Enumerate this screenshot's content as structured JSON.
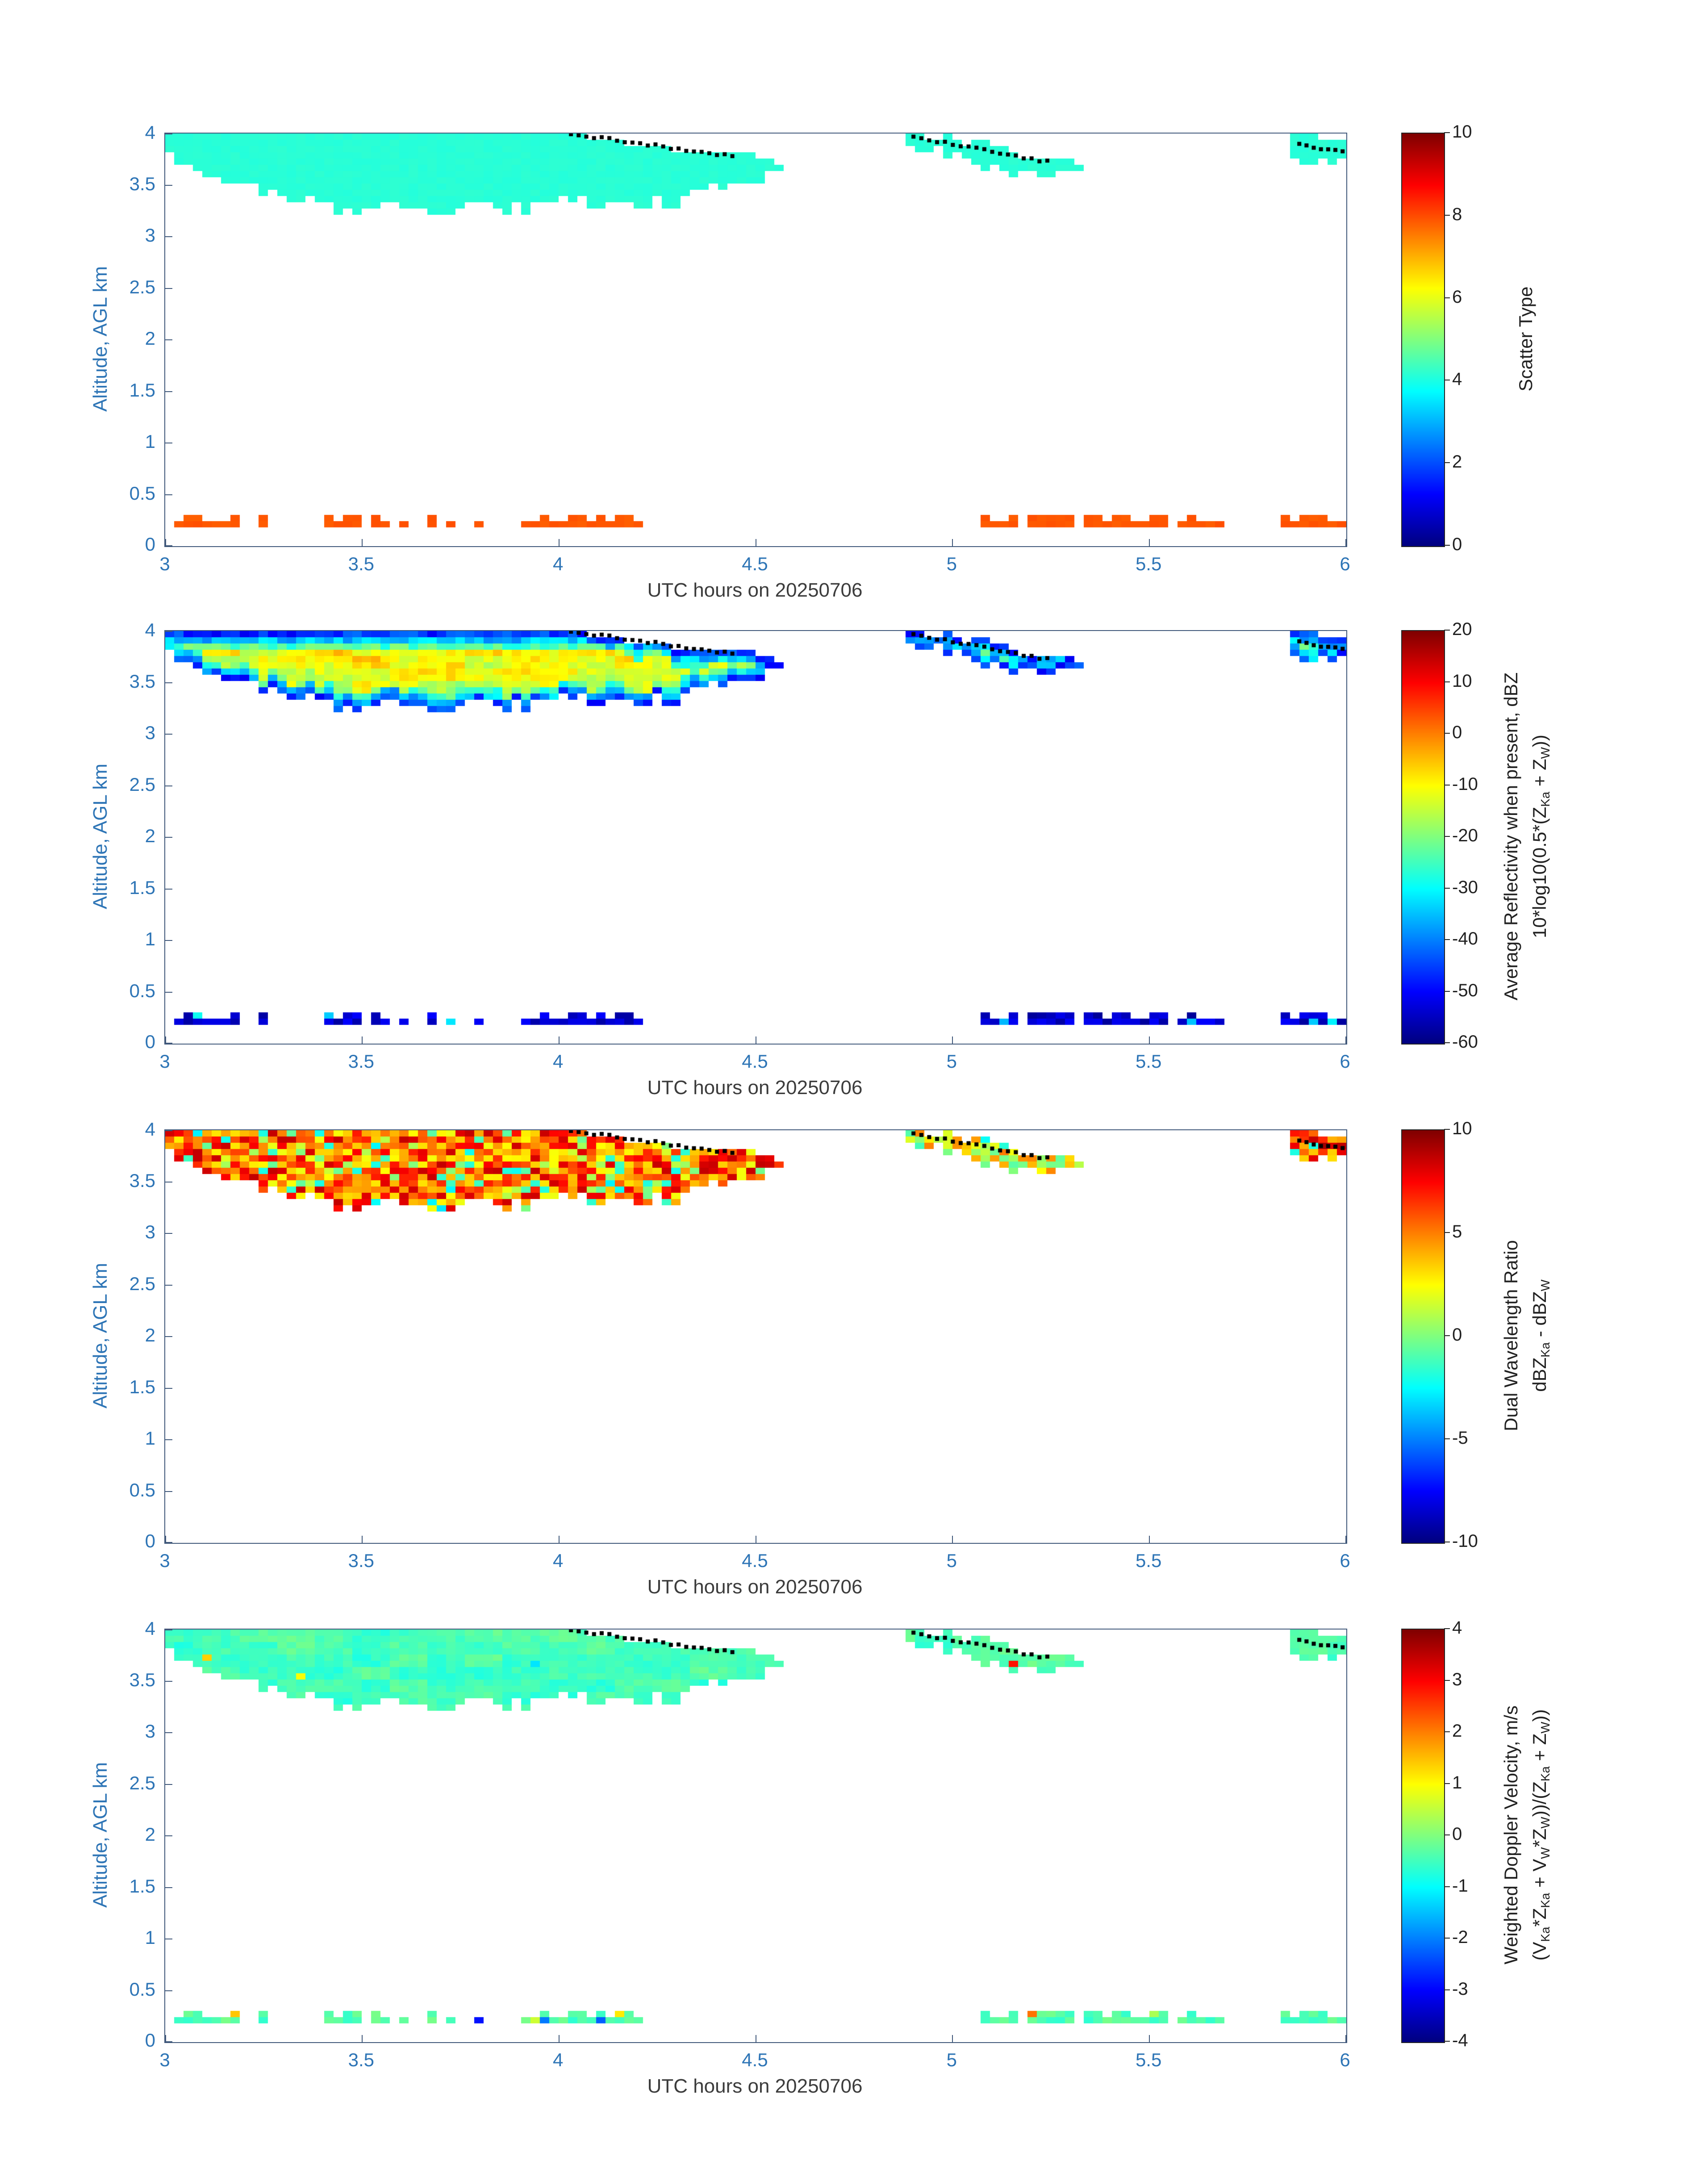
{
  "chart_data": {
    "type": "heatmap",
    "colormap": "jet",
    "xlabel": "UTC hours on 20250706",
    "ylabel": "Altitude, AGL km",
    "x_range": [
      3,
      6
    ],
    "y_range": [
      0,
      4
    ],
    "x_ticks": [
      "3",
      "3.5",
      "4",
      "4.5",
      "5",
      "5.5",
      "6"
    ],
    "y_ticks": [
      "0",
      "0.5",
      "1",
      "1.5",
      "2",
      "2.5",
      "3",
      "3.5",
      "4"
    ],
    "grid": {
      "nx": 126,
      "ny": 66
    },
    "axis_color": "#2e75b6",
    "xlabel_color": "#3c3c3c",
    "regions": {
      "main_cloud": {
        "x": [
          3.0,
          3.06,
          3.12,
          3.2,
          3.28,
          3.36,
          3.44,
          3.52,
          3.6,
          3.68,
          3.76,
          3.84,
          3.92,
          4.0,
          4.08,
          4.16,
          4.24,
          4.32,
          4.4,
          4.48,
          4.56
        ],
        "top": [
          4.0,
          4.0,
          3.97,
          4.0,
          4.0,
          4.0,
          4.0,
          4.0,
          4.0,
          4.0,
          4.0,
          4.0,
          4.0,
          4.0,
          3.98,
          3.93,
          3.88,
          3.83,
          3.8,
          3.82,
          3.74
        ],
        "bot": [
          3.8,
          3.66,
          3.58,
          3.5,
          3.4,
          3.34,
          3.28,
          3.26,
          3.3,
          3.24,
          3.28,
          3.24,
          3.28,
          3.34,
          3.3,
          3.34,
          3.3,
          3.38,
          3.46,
          3.52,
          3.62
        ]
      },
      "second_cloud": {
        "x": [
          4.88,
          4.96,
          5.04,
          5.12,
          5.2,
          5.28,
          5.33
        ],
        "top": [
          4.0,
          3.97,
          3.92,
          3.86,
          3.8,
          3.76,
          3.72
        ],
        "bot": [
          3.88,
          3.8,
          3.73,
          3.66,
          3.62,
          3.62,
          3.64
        ]
      },
      "third_cloud": {
        "x": [
          5.87,
          5.93,
          6.0
        ],
        "top": [
          3.97,
          3.96,
          3.93
        ],
        "bot": [
          3.77,
          3.72,
          3.74
        ]
      },
      "low_band_y": [
        0.18,
        0.32
      ],
      "low_band_segments": [
        [
          3.02,
          3.2
        ],
        [
          3.23,
          3.26
        ],
        [
          3.4,
          3.5
        ],
        [
          3.52,
          3.56
        ],
        [
          3.6,
          3.63
        ],
        [
          3.66,
          3.68
        ],
        [
          3.71,
          3.74
        ],
        [
          3.78,
          3.8
        ],
        [
          3.91,
          4.22
        ],
        [
          5.08,
          5.16
        ],
        [
          5.18,
          5.31
        ],
        [
          5.34,
          5.55
        ],
        [
          5.58,
          5.7
        ],
        [
          5.83,
          5.99
        ]
      ],
      "cloud_top_dots": [
        {
          "p": [
            [
              4.03,
              4.0
            ],
            [
              4.44,
              3.78
            ]
          ],
          "n": 22
        },
        {
          "p": [
            [
              4.9,
              3.97
            ],
            [
              5.24,
              3.73
            ]
          ],
          "n": 18
        },
        {
          "p": [
            [
              5.88,
              3.89
            ],
            [
              5.99,
              3.83
            ]
          ],
          "n": 7
        }
      ]
    },
    "panels": [
      {
        "name": "scatter-type",
        "clim": [
          0,
          10
        ],
        "cbar_ticks": [
          "0",
          "2",
          "4",
          "6",
          "8",
          "10"
        ],
        "cbar_label_lines": [
          [
            {
              "t": "Scatter Type"
            }
          ]
        ],
        "cloud_values": {
          "main_base": 4.15,
          "second_base": 4.15,
          "third_base": 4.15,
          "variation": 0.05,
          "smooth": false,
          "vgrad": 0,
          "edge_levels": null,
          "edge_thresholds": null,
          "edge_noise": 0,
          "speckle_frac": 0,
          "speckle_range": [
            0,
            0
          ]
        },
        "low_band": {
          "base": 7.9,
          "variation": 0.08,
          "speckle_frac": 0,
          "speckle_range": [
            0,
            0
          ]
        }
      },
      {
        "name": "reflectivity",
        "clim": [
          -60,
          20
        ],
        "cbar_ticks": [
          "-60",
          "-50",
          "-40",
          "-30",
          "-20",
          "-10",
          "0",
          "10",
          "20"
        ],
        "cbar_label_lines": [
          [
            {
              "t": "Average Reflectivity when present, dBZ"
            }
          ],
          [
            {
              "t": "10*log10(0.5*(Z"
            },
            {
              "t": "Ka",
              "sub": true
            },
            {
              "t": " + Z"
            },
            {
              "t": "W",
              "sub": true
            },
            {
              "t": "))"
            }
          ]
        ],
        "cloud_values": {
          "main_base": -13,
          "second_base": -26,
          "third_base": -24,
          "variation": 7,
          "smooth": true,
          "vgrad": 11,
          "edge_levels": [
            -46,
            -35,
            -24
          ],
          "edge_thresholds": [
            0.9,
            1.7,
            2.5
          ],
          "edge_noise": 5,
          "speckle_frac": 0,
          "speckle_range": [
            0,
            0
          ]
        },
        "low_band": {
          "base": -54,
          "variation": 4,
          "speckle_frac": 0.1,
          "speckle_range": [
            -40,
            -26
          ]
        }
      },
      {
        "name": "dual-wavelength-ratio",
        "clim": [
          -10,
          10
        ],
        "cbar_ticks": [
          "-10",
          "-5",
          "0",
          "5",
          "10"
        ],
        "cbar_label_lines": [
          [
            {
              "t": "Dual Wavelength Ratio"
            }
          ],
          [
            {
              "t": "dBZ"
            },
            {
              "t": "Ka",
              "sub": true
            },
            {
              "t": " - dBZ"
            },
            {
              "t": "W",
              "sub": true
            }
          ]
        ],
        "cloud_values": {
          "main_base": 5.4,
          "second_base": 2.0,
          "third_base": 6.2,
          "variation": 3.3,
          "smooth": false,
          "vgrad": 0,
          "edge_levels": null,
          "edge_thresholds": null,
          "edge_noise": 0,
          "speckle_frac": 0.13,
          "speckle_range": [
            -3,
            2
          ]
        },
        "low_band": null
      },
      {
        "name": "doppler-velocity",
        "clim": [
          -4,
          4
        ],
        "cbar_ticks": [
          "-4",
          "-3",
          "-2",
          "-1",
          "0",
          "1",
          "2",
          "3",
          "4"
        ],
        "cbar_label_lines": [
          [
            {
              "t": "Weighted Doppler Velocity, m/s"
            }
          ],
          [
            {
              "t": "(V"
            },
            {
              "t": "Ka",
              "sub": true
            },
            {
              "t": "*Z"
            },
            {
              "t": "Ka",
              "sub": true
            },
            {
              "t": " + V"
            },
            {
              "t": "W",
              "sub": true
            },
            {
              "t": "*Z"
            },
            {
              "t": "W",
              "sub": true
            },
            {
              "t": "))/(Z"
            },
            {
              "t": "Ka",
              "sub": true
            },
            {
              "t": " + Z"
            },
            {
              "t": "W",
              "sub": true
            },
            {
              "t": "))"
            }
          ]
        ],
        "cloud_values": {
          "main_base": -0.45,
          "second_base": -0.4,
          "third_base": -0.5,
          "variation": 0.35,
          "smooth": true,
          "vgrad": 0,
          "edge_levels": null,
          "edge_thresholds": null,
          "edge_noise": 0,
          "speckle_frac": 0.02,
          "speckle_range": [
            -3.4,
            3.4
          ]
        },
        "low_band": {
          "base": -0.35,
          "variation": 0.3,
          "speckle_frac": 0.1,
          "speckle_range": [
            -3.5,
            3.5
          ]
        }
      }
    ]
  }
}
